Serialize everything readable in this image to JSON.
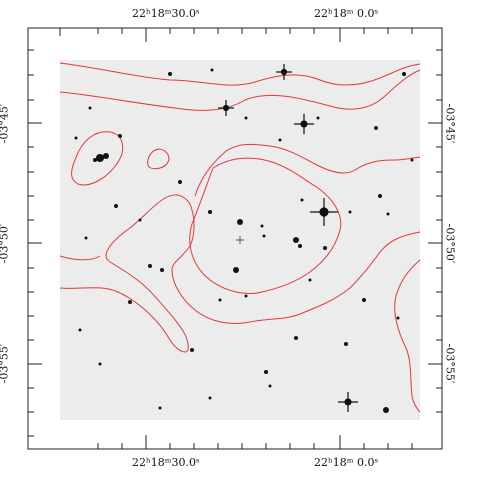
{
  "ra_labels": [
    "22ʰ18ᵐ30.0ˢ",
    "22ʰ18ᵐ 0.0ˢ"
  ],
  "dec_labels": [
    "-03°45′",
    "-03°50′",
    "-03°55′"
  ],
  "colors": {
    "contour": "#e03a3a",
    "frame": "#222222",
    "sky": "#eeeeee"
  },
  "marker": "cross-center"
}
